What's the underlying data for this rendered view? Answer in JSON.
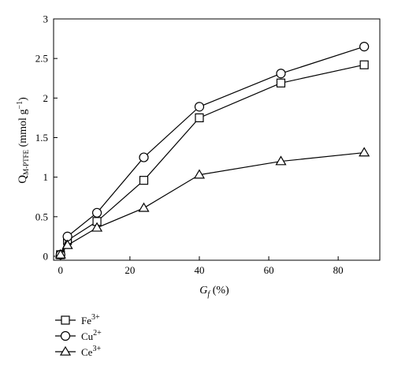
{
  "chart_data": {
    "type": "line",
    "xlabel_main": "G",
    "xlabel_sub": "f",
    "xlabel_unit": " (%)",
    "ylabel_main": "Q",
    "ylabel_sub": "M-PTFE",
    "ylabel_unit_open": " (mmol g",
    "ylabel_unit_sup": "−1",
    "ylabel_unit_close": ")",
    "xlim": [
      -2,
      92
    ],
    "ylim": [
      -0.05,
      3
    ],
    "xticks": [
      0,
      20,
      40,
      60,
      80
    ],
    "yticks": [
      0,
      0.5,
      1,
      1.5,
      2,
      2.5,
      3
    ],
    "xtick_labels": [
      "0",
      "20",
      "40",
      "60",
      "80"
    ],
    "ytick_labels": [
      "0",
      "0.5",
      "1",
      "1.5",
      "2",
      "2.5",
      "3"
    ],
    "x": [
      0,
      2,
      10.5,
      24,
      40,
      63.5,
      87.5
    ],
    "series": [
      {
        "name_base": "Fe",
        "name_sup": "3+",
        "marker": "square",
        "values": [
          0.02,
          0.2,
          0.44,
          0.96,
          1.75,
          2.19,
          2.42
        ]
      },
      {
        "name_base": "Cu",
        "name_sup": "2+",
        "marker": "circle",
        "values": [
          0.02,
          0.25,
          0.55,
          1.25,
          1.89,
          2.31,
          2.65
        ]
      },
      {
        "name_base": "Ce",
        "name_sup": "3+",
        "marker": "triangle",
        "values": [
          0.02,
          0.14,
          0.36,
          0.61,
          1.03,
          1.2,
          1.31
        ]
      }
    ],
    "legend_position": "bottom-left",
    "grid": false
  }
}
